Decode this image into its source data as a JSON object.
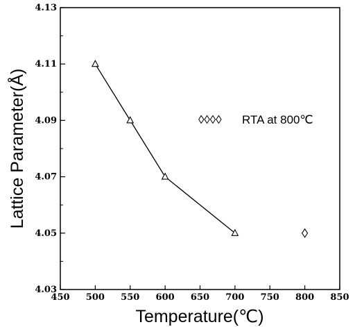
{
  "chart_data": {
    "type": "line",
    "title": "",
    "xlabel": "Temperature(℃)",
    "ylabel": "Lattice Parameter(Å)",
    "xlim": [
      450,
      850
    ],
    "ylim": [
      4.03,
      4.13
    ],
    "x_ticks": [
      "450",
      "500",
      "550",
      "600",
      "650",
      "700",
      "750",
      "800",
      "850"
    ],
    "y_ticks": [
      "4.03",
      "4.05",
      "4.07",
      "4.09",
      "4.11",
      "4.13"
    ],
    "grid": false,
    "series": [
      {
        "marker": "triangle",
        "line": true,
        "x": [
          500,
          550,
          600,
          700
        ],
        "y": [
          4.11,
          4.09,
          4.07,
          4.05
        ]
      },
      {
        "name": "RTA at 800℃",
        "marker": "diamond",
        "line": false,
        "x": [
          800
        ],
        "y": [
          4.05
        ]
      }
    ],
    "annotation": {
      "text": "RTA at 800℃",
      "marker_symbols": "◊◊◊◊",
      "position": "right-middle"
    }
  }
}
